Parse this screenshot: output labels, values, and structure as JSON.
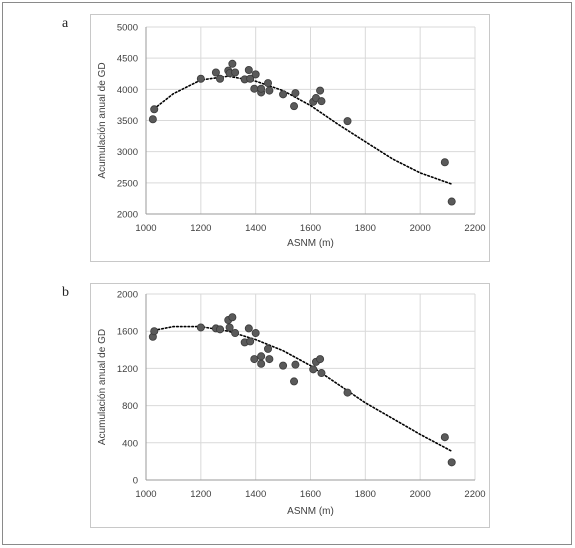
{
  "panels": [
    {
      "letter": "a"
    },
    {
      "letter": "b"
    }
  ],
  "chart_data": [
    {
      "type": "scatter",
      "title": "",
      "xlabel": "ASNM (m)",
      "ylabel": "Acumulación anual de GD",
      "xlim": [
        1000,
        2200
      ],
      "ylim": [
        2000,
        5000
      ],
      "xticks": [
        1000,
        1200,
        1400,
        1600,
        1800,
        2000,
        2200
      ],
      "yticks": [
        2000,
        2500,
        3000,
        3500,
        4000,
        4500,
        5000
      ],
      "grid": "horizontal and vertical",
      "legend": "none",
      "marker_color": "#5a5a5a",
      "trendline": {
        "style": "dotted",
        "color": "#000000",
        "x_range": [
          1030,
          2115
        ],
        "points": [
          [
            1030,
            3690
          ],
          [
            1100,
            3930
          ],
          [
            1200,
            4150
          ],
          [
            1300,
            4210
          ],
          [
            1400,
            4130
          ],
          [
            1500,
            3980
          ],
          [
            1600,
            3740
          ],
          [
            1700,
            3440
          ],
          [
            1800,
            3160
          ],
          [
            1900,
            2880
          ],
          [
            2000,
            2660
          ],
          [
            2115,
            2480
          ]
        ]
      },
      "series": [
        {
          "x": [
            1025,
            1030,
            1200,
            1255,
            1270,
            1300,
            1305,
            1315,
            1325,
            1360,
            1375,
            1380,
            1395,
            1400,
            1420,
            1420,
            1445,
            1450,
            1500,
            1540,
            1545,
            1610,
            1620,
            1635,
            1640,
            1735,
            2090,
            2115
          ],
          "y": [
            3520,
            3680,
            4170,
            4270,
            4170,
            4300,
            4260,
            4410,
            4270,
            4160,
            4310,
            4170,
            4010,
            4240,
            3950,
            4010,
            4100,
            3980,
            3920,
            3730,
            3940,
            3800,
            3860,
            3980,
            3810,
            3490,
            2830,
            2200
          ]
        }
      ]
    },
    {
      "type": "scatter",
      "title": "",
      "xlabel": "ASNM (m)",
      "ylabel": "Acumulación anual de GD",
      "xlim": [
        1000,
        2200
      ],
      "ylim": [
        0,
        2000
      ],
      "xticks": [
        1000,
        1200,
        1400,
        1600,
        1800,
        2000,
        2200
      ],
      "yticks": [
        0,
        400,
        800,
        1200,
        1600,
        2000
      ],
      "grid": "horizontal and vertical",
      "legend": "none",
      "marker_color": "#5a5a5a",
      "trendline": {
        "style": "dotted",
        "color": "#000000",
        "x_range": [
          1030,
          2115
        ],
        "points": [
          [
            1030,
            1610
          ],
          [
            1100,
            1650
          ],
          [
            1200,
            1650
          ],
          [
            1300,
            1600
          ],
          [
            1400,
            1510
          ],
          [
            1500,
            1390
          ],
          [
            1600,
            1230
          ],
          [
            1700,
            1030
          ],
          [
            1800,
            830
          ],
          [
            1900,
            660
          ],
          [
            2000,
            490
          ],
          [
            2115,
            310
          ]
        ]
      },
      "series": [
        {
          "x": [
            1025,
            1030,
            1200,
            1255,
            1270,
            1300,
            1305,
            1315,
            1325,
            1360,
            1375,
            1380,
            1395,
            1400,
            1420,
            1420,
            1445,
            1450,
            1500,
            1540,
            1545,
            1610,
            1620,
            1635,
            1640,
            1735,
            2090,
            2115
          ],
          "y": [
            1540,
            1600,
            1640,
            1630,
            1620,
            1720,
            1640,
            1750,
            1580,
            1480,
            1630,
            1490,
            1300,
            1580,
            1330,
            1250,
            1410,
            1300,
            1230,
            1060,
            1240,
            1190,
            1270,
            1300,
            1150,
            940,
            460,
            190
          ]
        }
      ]
    }
  ]
}
